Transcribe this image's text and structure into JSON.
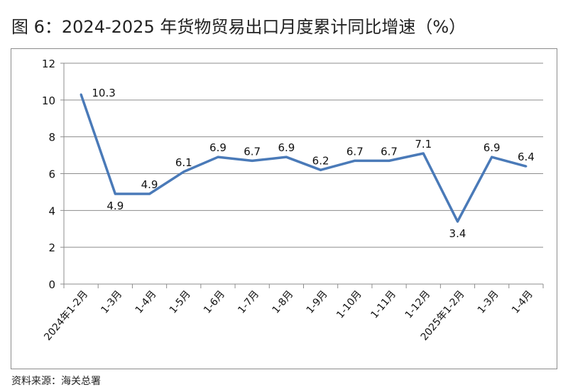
{
  "title": "图 6：2024-2025 年货物贸易出口月度累计同比增速（%）",
  "source": "资料来源：海关总署",
  "chart_data": {
    "type": "line",
    "categories": [
      "2024年1-2月",
      "1-3月",
      "1-4月",
      "1-5月",
      "1-6月",
      "1-7月",
      "1-8月",
      "1-9月",
      "1-10月",
      "1-11月",
      "1-12月",
      "2025年1-2月",
      "1-3月",
      "1-4月"
    ],
    "values": [
      10.3,
      4.9,
      4.9,
      6.1,
      6.9,
      6.7,
      6.9,
      6.2,
      6.7,
      6.7,
      7.1,
      3.4,
      6.9,
      6.4
    ],
    "data_labels": [
      "10.3",
      "4.9",
      "4.9",
      "6.1",
      "6.9",
      "6.7",
      "6.9",
      "6.2",
      "6.7",
      "6.7",
      "7.1",
      "3.4",
      "6.9",
      "6.4"
    ],
    "ylim": [
      0,
      12
    ],
    "yticks": [
      0,
      2,
      4,
      6,
      8,
      10,
      12
    ],
    "grid": true,
    "legend": "none",
    "line_color": "#4a7ab8",
    "grid_color": "#8c8c8c"
  }
}
